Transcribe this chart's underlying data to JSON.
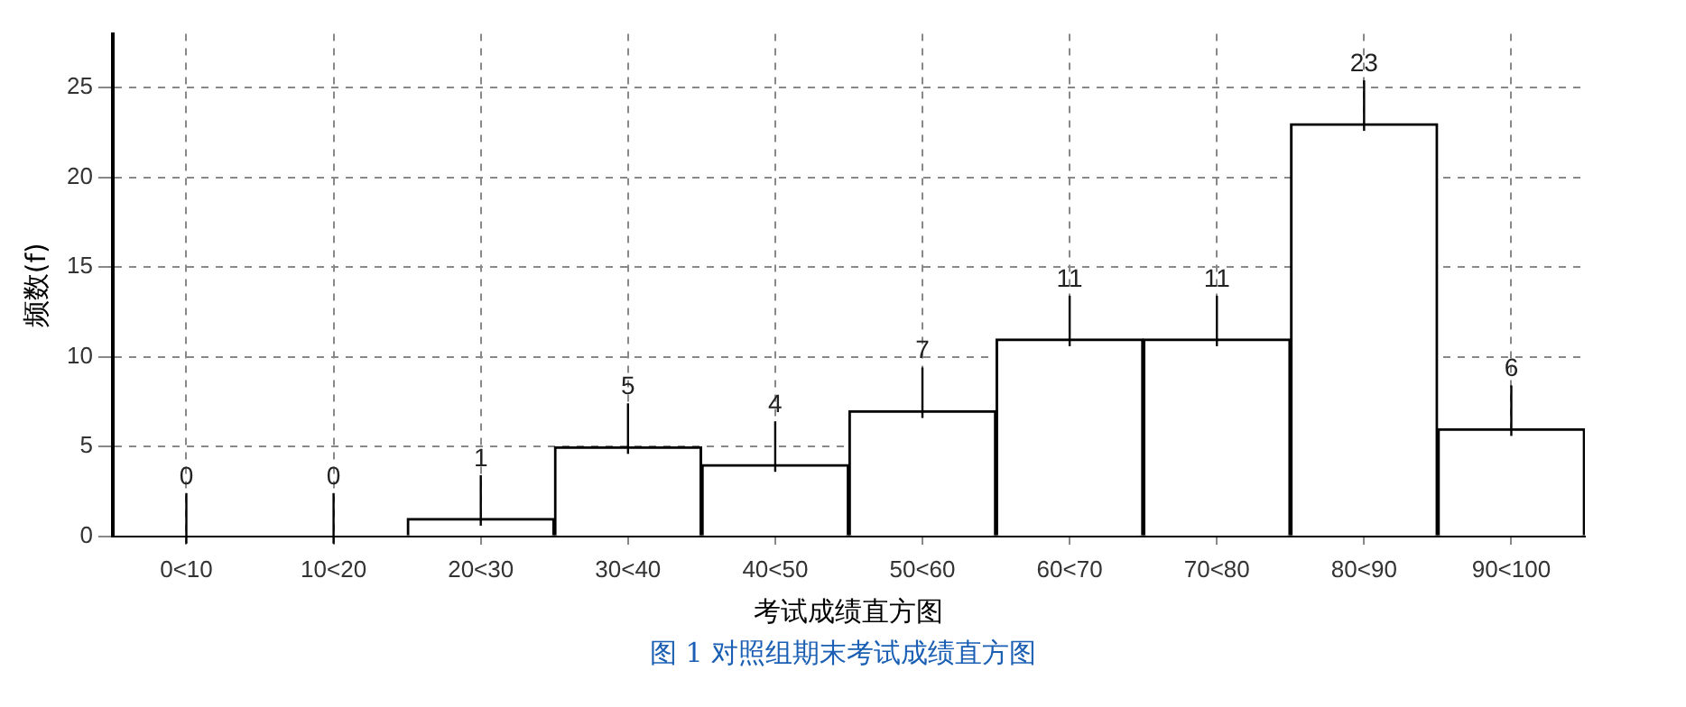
{
  "chart_data": {
    "type": "bar",
    "xlabel": "考试成绩直方图",
    "ylabel": "频数(f)",
    "annotations": [
      "图 1 对照组期末考试成绩直方图"
    ],
    "categories": [
      "0<10",
      "10<20",
      "20<30",
      "30<40",
      "40<50",
      "50<60",
      "60<70",
      "70<80",
      "80<90",
      "90<100"
    ],
    "values": [
      0,
      0,
      1,
      5,
      4,
      7,
      11,
      11,
      23,
      6
    ],
    "color": "#ffffff",
    "ylim": [
      0,
      28
    ],
    "yticks": [
      0,
      5,
      10,
      15,
      20,
      25
    ],
    "grid": true,
    "data_labels": true,
    "legend": false
  }
}
